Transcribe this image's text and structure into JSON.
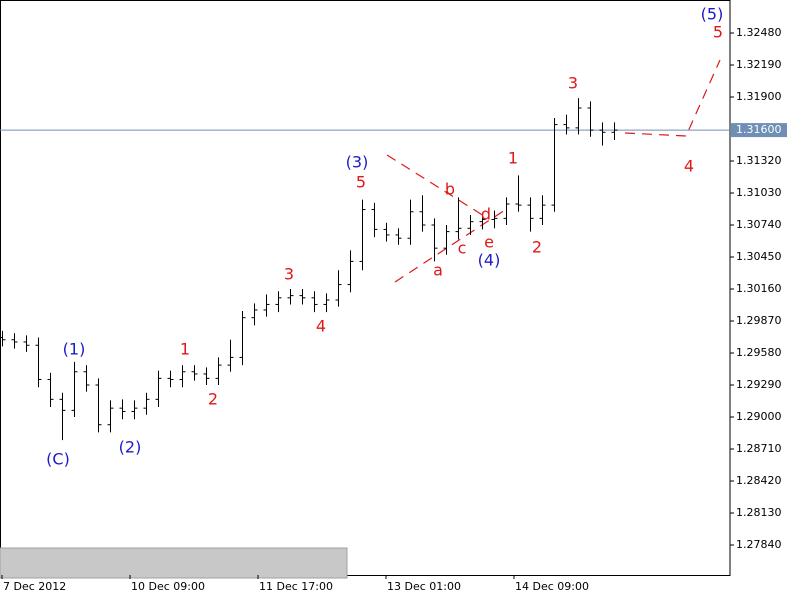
{
  "chart_data": {
    "type": "ohlc",
    "x": [
      0,
      3,
      6,
      9,
      12,
      15,
      18,
      21,
      24,
      27,
      30,
      33,
      36,
      39,
      42,
      45,
      48,
      51,
      54,
      57,
      60,
      63,
      66,
      69,
      72,
      75,
      78,
      81,
      84,
      87,
      90,
      93,
      96,
      99,
      102,
      105,
      108,
      111,
      114,
      117,
      120,
      123,
      126,
      129,
      132,
      135,
      138,
      141,
      144,
      147,
      150,
      153
    ],
    "open": [
      1.2972,
      1.297,
      1.2968,
      1.2965,
      1.2934,
      1.2916,
      1.2906,
      1.2941,
      1.2929,
      1.2893,
      1.2908,
      1.2905,
      1.2908,
      1.2916,
      1.2935,
      1.2934,
      1.2941,
      1.2939,
      1.2935,
      1.2947,
      1.2954,
      1.299,
      1.2997,
      1.3002,
      1.3008,
      1.301,
      1.3008,
      1.3002,
      1.3006,
      1.302,
      1.3041,
      1.3088,
      1.307,
      1.3065,
      1.3062,
      1.3086,
      1.3074,
      1.3053,
      1.3068,
      1.3071,
      1.3077,
      1.3079,
      1.308,
      1.3093,
      1.3092,
      1.308,
      1.3092,
      1.3165,
      1.3162,
      1.318,
      1.316,
      1.3158
    ],
    "high": [
      1.2978,
      1.2976,
      1.2974,
      1.2972,
      1.294,
      1.2922,
      1.295,
      1.2947,
      1.2935,
      1.2915,
      1.2916,
      1.2915,
      1.2922,
      1.2942,
      1.2942,
      1.2947,
      1.2947,
      1.2945,
      1.2954,
      1.297,
      1.2996,
      1.3003,
      1.3011,
      1.3014,
      1.3016,
      1.3016,
      1.3014,
      1.3012,
      1.3033,
      1.3051,
      1.3097,
      1.3094,
      1.3076,
      1.3071,
      1.3097,
      1.3101,
      1.308,
      1.3074,
      1.3099,
      1.3083,
      1.3085,
      1.3087,
      1.3099,
      1.3119,
      1.3099,
      1.3101,
      1.3171,
      1.3174,
      1.3189,
      1.3186,
      1.3167,
      1.3167
    ],
    "low": [
      1.2964,
      1.2962,
      1.2959,
      1.2927,
      1.2909,
      1.2879,
      1.29,
      1.2923,
      1.2886,
      1.2886,
      1.2898,
      1.2898,
      1.2902,
      1.2909,
      1.2927,
      1.2927,
      1.2933,
      1.2929,
      1.2929,
      1.2941,
      1.2947,
      1.2983,
      1.2991,
      1.2995,
      1.3002,
      1.3002,
      1.2995,
      1.2995,
      1.3,
      1.3013,
      1.3033,
      1.3063,
      1.3059,
      1.3056,
      1.3056,
      1.3068,
      1.3041,
      1.3047,
      1.3061,
      1.3065,
      1.307,
      1.3071,
      1.3074,
      1.3086,
      1.3068,
      1.3074,
      1.3086,
      1.3156,
      1.3156,
      1.3154,
      1.3146,
      1.3151
    ],
    "close": [
      1.297,
      1.2968,
      1.2965,
      1.2934,
      1.2916,
      1.2906,
      1.2941,
      1.2929,
      1.2893,
      1.2908,
      1.2905,
      1.2908,
      1.2916,
      1.2935,
      1.2934,
      1.2941,
      1.2939,
      1.2935,
      1.2947,
      1.2954,
      1.299,
      1.2997,
      1.3002,
      1.3008,
      1.301,
      1.3008,
      1.3002,
      1.3006,
      1.302,
      1.3041,
      1.3088,
      1.307,
      1.3065,
      1.3062,
      1.3086,
      1.3074,
      1.3053,
      1.3068,
      1.3071,
      1.3077,
      1.3079,
      1.308,
      1.3093,
      1.3092,
      1.308,
      1.3092,
      1.3165,
      1.3162,
      1.318,
      1.316,
      1.3158,
      1.316
    ],
    "color": "#000000",
    "xlim": [
      -0.5,
      182
    ],
    "xticks": [
      {
        "value": 0,
        "label": "7 Dec 2012"
      },
      {
        "value": 32,
        "label": "10 Dec 09:00"
      },
      {
        "value": 64,
        "label": "11 Dec 17:00"
      },
      {
        "value": 96,
        "label": "13 Dec 01:00"
      },
      {
        "value": 128,
        "label": "14 Dec 09:00"
      }
    ],
    "ylim": [
      1.27568,
      1.32779
    ],
    "yticks": [
      {
        "value": 1.3248,
        "label": "1.32480"
      },
      {
        "value": 1.3219,
        "label": "1.32190"
      },
      {
        "value": 1.319,
        "label": "1.31900"
      },
      {
        "value": 1.3132,
        "label": "1.31320"
      },
      {
        "value": 1.3103,
        "label": "1.31030"
      },
      {
        "value": 1.3074,
        "label": "1.30740"
      },
      {
        "value": 1.3045,
        "label": "1.30450"
      },
      {
        "value": 1.3016,
        "label": "1.30160"
      },
      {
        "value": 1.2987,
        "label": "1.29870"
      },
      {
        "value": 1.2958,
        "label": "1.29580"
      },
      {
        "value": 1.2929,
        "label": "1.29290"
      },
      {
        "value": 1.29,
        "label": "1.29000"
      },
      {
        "value": 1.2871,
        "label": "1.28710"
      },
      {
        "value": 1.2842,
        "label": "1.28420"
      },
      {
        "value": 1.2813,
        "label": "1.28130"
      },
      {
        "value": 1.2784,
        "label": "1.27840"
      }
    ],
    "current_price": {
      "value": 1.316,
      "label": "1.31600",
      "color": "#6f8fb4"
    },
    "annotations": [
      {
        "text": "(1)",
        "color": "#1c1cc8"
      },
      {
        "text": "(C)",
        "color": "#1c1cc8"
      },
      {
        "text": "(2)",
        "color": "#1c1cc8"
      },
      {
        "text": "1",
        "color": "#e01818"
      },
      {
        "text": "2",
        "color": "#e01818"
      },
      {
        "text": "3",
        "color": "#e01818"
      },
      {
        "text": "4",
        "color": "#e01818"
      },
      {
        "text": "(3)",
        "color": "#1c1cc8"
      },
      {
        "text": "5",
        "color": "#e01818"
      },
      {
        "text": "b",
        "color": "#e01818"
      },
      {
        "text": "a",
        "color": "#e01818"
      },
      {
        "text": "c",
        "color": "#e01818"
      },
      {
        "text": "d",
        "color": "#e01818"
      },
      {
        "text": "e",
        "color": "#e01818"
      },
      {
        "text": "(4)",
        "color": "#1c1cc8"
      },
      {
        "text": "1",
        "color": "#e01818"
      },
      {
        "text": "2",
        "color": "#e01818"
      },
      {
        "text": "3",
        "color": "#e01818"
      },
      {
        "text": "4",
        "color": "#e01818"
      },
      {
        "text": "5",
        "color": "#e01818"
      },
      {
        "text": "(5)",
        "color": "#1c1cc8"
      }
    ]
  }
}
